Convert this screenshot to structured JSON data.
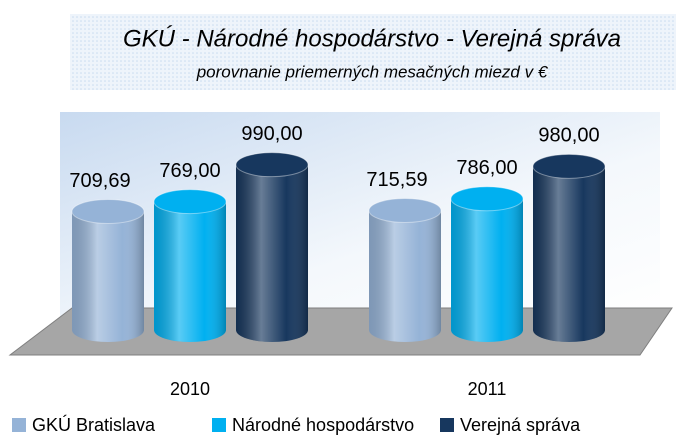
{
  "chart_data": {
    "type": "bar3d-cylinder",
    "title": "GKÚ - Národné hospodárstvo - Verejná správa",
    "subtitle": "porovnanie priemerných mesačných miezd v €",
    "categories": [
      "2010",
      "2011"
    ],
    "series": [
      {
        "name": "GKÚ Bratislava",
        "color": "#95b3d7",
        "values": [
          709.69,
          715.59
        ],
        "value_labels": [
          "709,69",
          "715,59"
        ]
      },
      {
        "name": "Národné hospodárstvo",
        "color": "#00b0f0",
        "values": [
          769.0,
          786.0
        ],
        "value_labels": [
          "769,00",
          "786,00"
        ]
      },
      {
        "name": "Verejná správa",
        "color": "#17375e",
        "values": [
          990.0,
          980.0
        ],
        "value_labels": [
          "990,00",
          "980,00"
        ]
      }
    ]
  }
}
